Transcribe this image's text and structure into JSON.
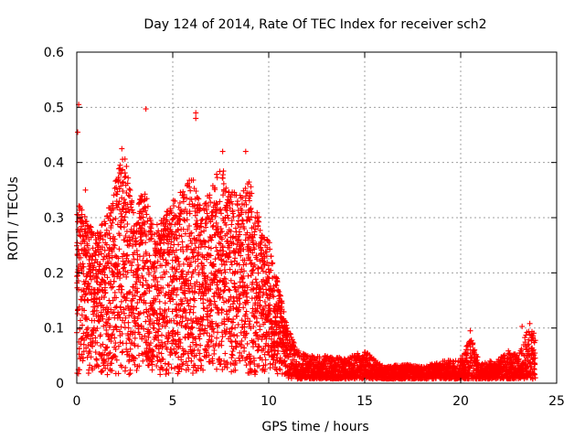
{
  "chart_data": {
    "type": "scatter",
    "title": "Day 124 of 2014, Rate Of TEC Index for receiver sch2",
    "xlabel": "GPS time / hours",
    "ylabel": "ROTI / TECUs",
    "xlim": [
      0,
      25
    ],
    "ylim": [
      0,
      0.6
    ],
    "xticks": [
      "0",
      "5",
      "10",
      "15",
      "20",
      "25"
    ],
    "yticks": [
      "0",
      "0.1",
      "0.2",
      "0.3",
      "0.4",
      "0.5",
      "0.6"
    ],
    "grid": true,
    "marker": "plus",
    "color": "#ff0000",
    "envelope": {
      "hours": [
        0,
        0.5,
        1,
        1.5,
        2,
        2.5,
        3,
        3.5,
        4,
        4.5,
        5,
        5.5,
        6,
        6.5,
        7,
        7.5,
        8,
        8.5,
        9,
        9.5,
        10,
        10.5,
        11,
        11.5,
        12,
        13,
        14,
        15,
        16,
        17,
        18,
        19,
        20,
        20.5,
        21,
        22,
        22.5,
        23,
        23.5,
        23.9
      ],
      "max_roti": [
        0.33,
        0.3,
        0.27,
        0.3,
        0.37,
        0.42,
        0.3,
        0.36,
        0.28,
        0.3,
        0.33,
        0.35,
        0.38,
        0.32,
        0.36,
        0.4,
        0.35,
        0.34,
        0.37,
        0.3,
        0.26,
        0.18,
        0.1,
        0.06,
        0.05,
        0.05,
        0.045,
        0.06,
        0.03,
        0.035,
        0.03,
        0.04,
        0.045,
        0.09,
        0.035,
        0.045,
        0.06,
        0.05,
        0.1,
        0.1
      ]
    },
    "outliers": [
      {
        "x": 0.1,
        "y": 0.505
      },
      {
        "x": 0.05,
        "y": 0.455
      },
      {
        "x": 3.6,
        "y": 0.497
      },
      {
        "x": 6.2,
        "y": 0.49
      },
      {
        "x": 6.2,
        "y": 0.48
      },
      {
        "x": 2.35,
        "y": 0.425
      },
      {
        "x": 8.8,
        "y": 0.42
      },
      {
        "x": 7.6,
        "y": 0.42
      },
      {
        "x": 0.45,
        "y": 0.35
      },
      {
        "x": 20.5,
        "y": 0.095
      },
      {
        "x": 23.6,
        "y": 0.108
      },
      {
        "x": 23.2,
        "y": 0.103
      }
    ]
  }
}
